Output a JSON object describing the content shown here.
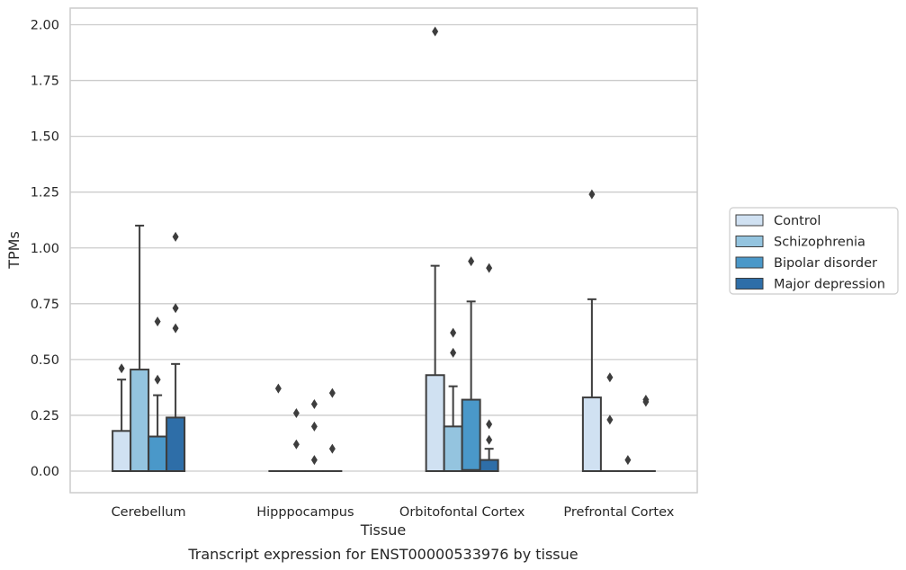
{
  "chart_data": {
    "type": "box",
    "title": "",
    "caption": "Transcript expression for ENST00000533976 by tissue",
    "xlabel": "Tissue",
    "ylabel": "TPMs",
    "ylim": [
      -0.1,
      2.07
    ],
    "yticks": [
      "0.00",
      "0.25",
      "0.50",
      "0.75",
      "1.00",
      "1.25",
      "1.50",
      "1.75",
      "2.00"
    ],
    "categories": [
      "Cerebellum",
      "Hipppocampus",
      "Orbitofontal Cortex",
      "Prefrontal Cortex"
    ],
    "grid": true,
    "legend_position": "right",
    "series": [
      {
        "name": "Control",
        "color": "#d0e1f2",
        "boxes": [
          {
            "q1": 0.0,
            "median": 0.0,
            "q3": 0.18,
            "whisker_low": 0.0,
            "whisker_high": 0.41,
            "outliers": [
              0.46
            ]
          },
          {
            "q1": 0.0,
            "median": 0.0,
            "q3": 0.0,
            "whisker_low": 0.0,
            "whisker_high": 0.0,
            "outliers": [
              0.37
            ]
          },
          {
            "q1": 0.0,
            "median": 0.0,
            "q3": 0.43,
            "whisker_low": 0.0,
            "whisker_high": 0.92,
            "outliers": [
              1.97
            ]
          },
          {
            "q1": 0.0,
            "median": 0.0,
            "q3": 0.33,
            "whisker_low": 0.0,
            "whisker_high": 0.77,
            "outliers": [
              1.24
            ]
          }
        ]
      },
      {
        "name": "Schizophrenia",
        "color": "#94c4df",
        "boxes": [
          {
            "q1": 0.0,
            "median": 0.0,
            "q3": 0.455,
            "whisker_low": 0.0,
            "whisker_high": 1.1,
            "outliers": []
          },
          {
            "q1": 0.0,
            "median": 0.0,
            "q3": 0.0,
            "whisker_low": 0.0,
            "whisker_high": 0.0,
            "outliers": [
              0.26,
              0.12
            ]
          },
          {
            "q1": 0.0,
            "median": 0.0,
            "q3": 0.2,
            "whisker_low": 0.0,
            "whisker_high": 0.38,
            "outliers": [
              0.62,
              0.53
            ]
          },
          {
            "q1": 0.0,
            "median": 0.0,
            "q3": 0.0,
            "whisker_low": 0.0,
            "whisker_high": 0.0,
            "outliers": [
              0.42,
              0.23
            ]
          }
        ]
      },
      {
        "name": "Bipolar disorder",
        "color": "#4a98c9",
        "boxes": [
          {
            "q1": 0.0,
            "median": 0.0,
            "q3": 0.155,
            "whisker_low": 0.0,
            "whisker_high": 0.34,
            "outliers": [
              0.67,
              0.41
            ]
          },
          {
            "q1": 0.0,
            "median": 0.0,
            "q3": 0.0,
            "whisker_low": 0.0,
            "whisker_high": 0.0,
            "outliers": [
              0.3,
              0.2,
              0.05
            ]
          },
          {
            "q1": 0.0,
            "median": 0.005,
            "q3": 0.32,
            "whisker_low": 0.0,
            "whisker_high": 0.76,
            "outliers": [
              0.94
            ]
          },
          {
            "q1": 0.0,
            "median": 0.0,
            "q3": 0.0,
            "whisker_low": 0.0,
            "whisker_high": 0.0,
            "outliers": [
              0.05
            ]
          }
        ]
      },
      {
        "name": "Major depression",
        "color": "#2e6ea8",
        "boxes": [
          {
            "q1": 0.0,
            "median": 0.0,
            "q3": 0.24,
            "whisker_low": 0.0,
            "whisker_high": 0.48,
            "outliers": [
              1.05,
              0.73,
              0.64
            ]
          },
          {
            "q1": 0.0,
            "median": 0.0,
            "q3": 0.0,
            "whisker_low": 0.0,
            "whisker_high": 0.0,
            "outliers": [
              0.35,
              0.1
            ]
          },
          {
            "q1": 0.0,
            "median": 0.0,
            "q3": 0.05,
            "whisker_low": 0.0,
            "whisker_high": 0.1,
            "outliers": [
              0.91,
              0.21,
              0.14
            ]
          },
          {
            "q1": 0.0,
            "median": 0.0,
            "q3": 0.0,
            "whisker_low": 0.0,
            "whisker_high": 0.0,
            "outliers": [
              0.32,
              0.31
            ]
          }
        ]
      }
    ]
  }
}
